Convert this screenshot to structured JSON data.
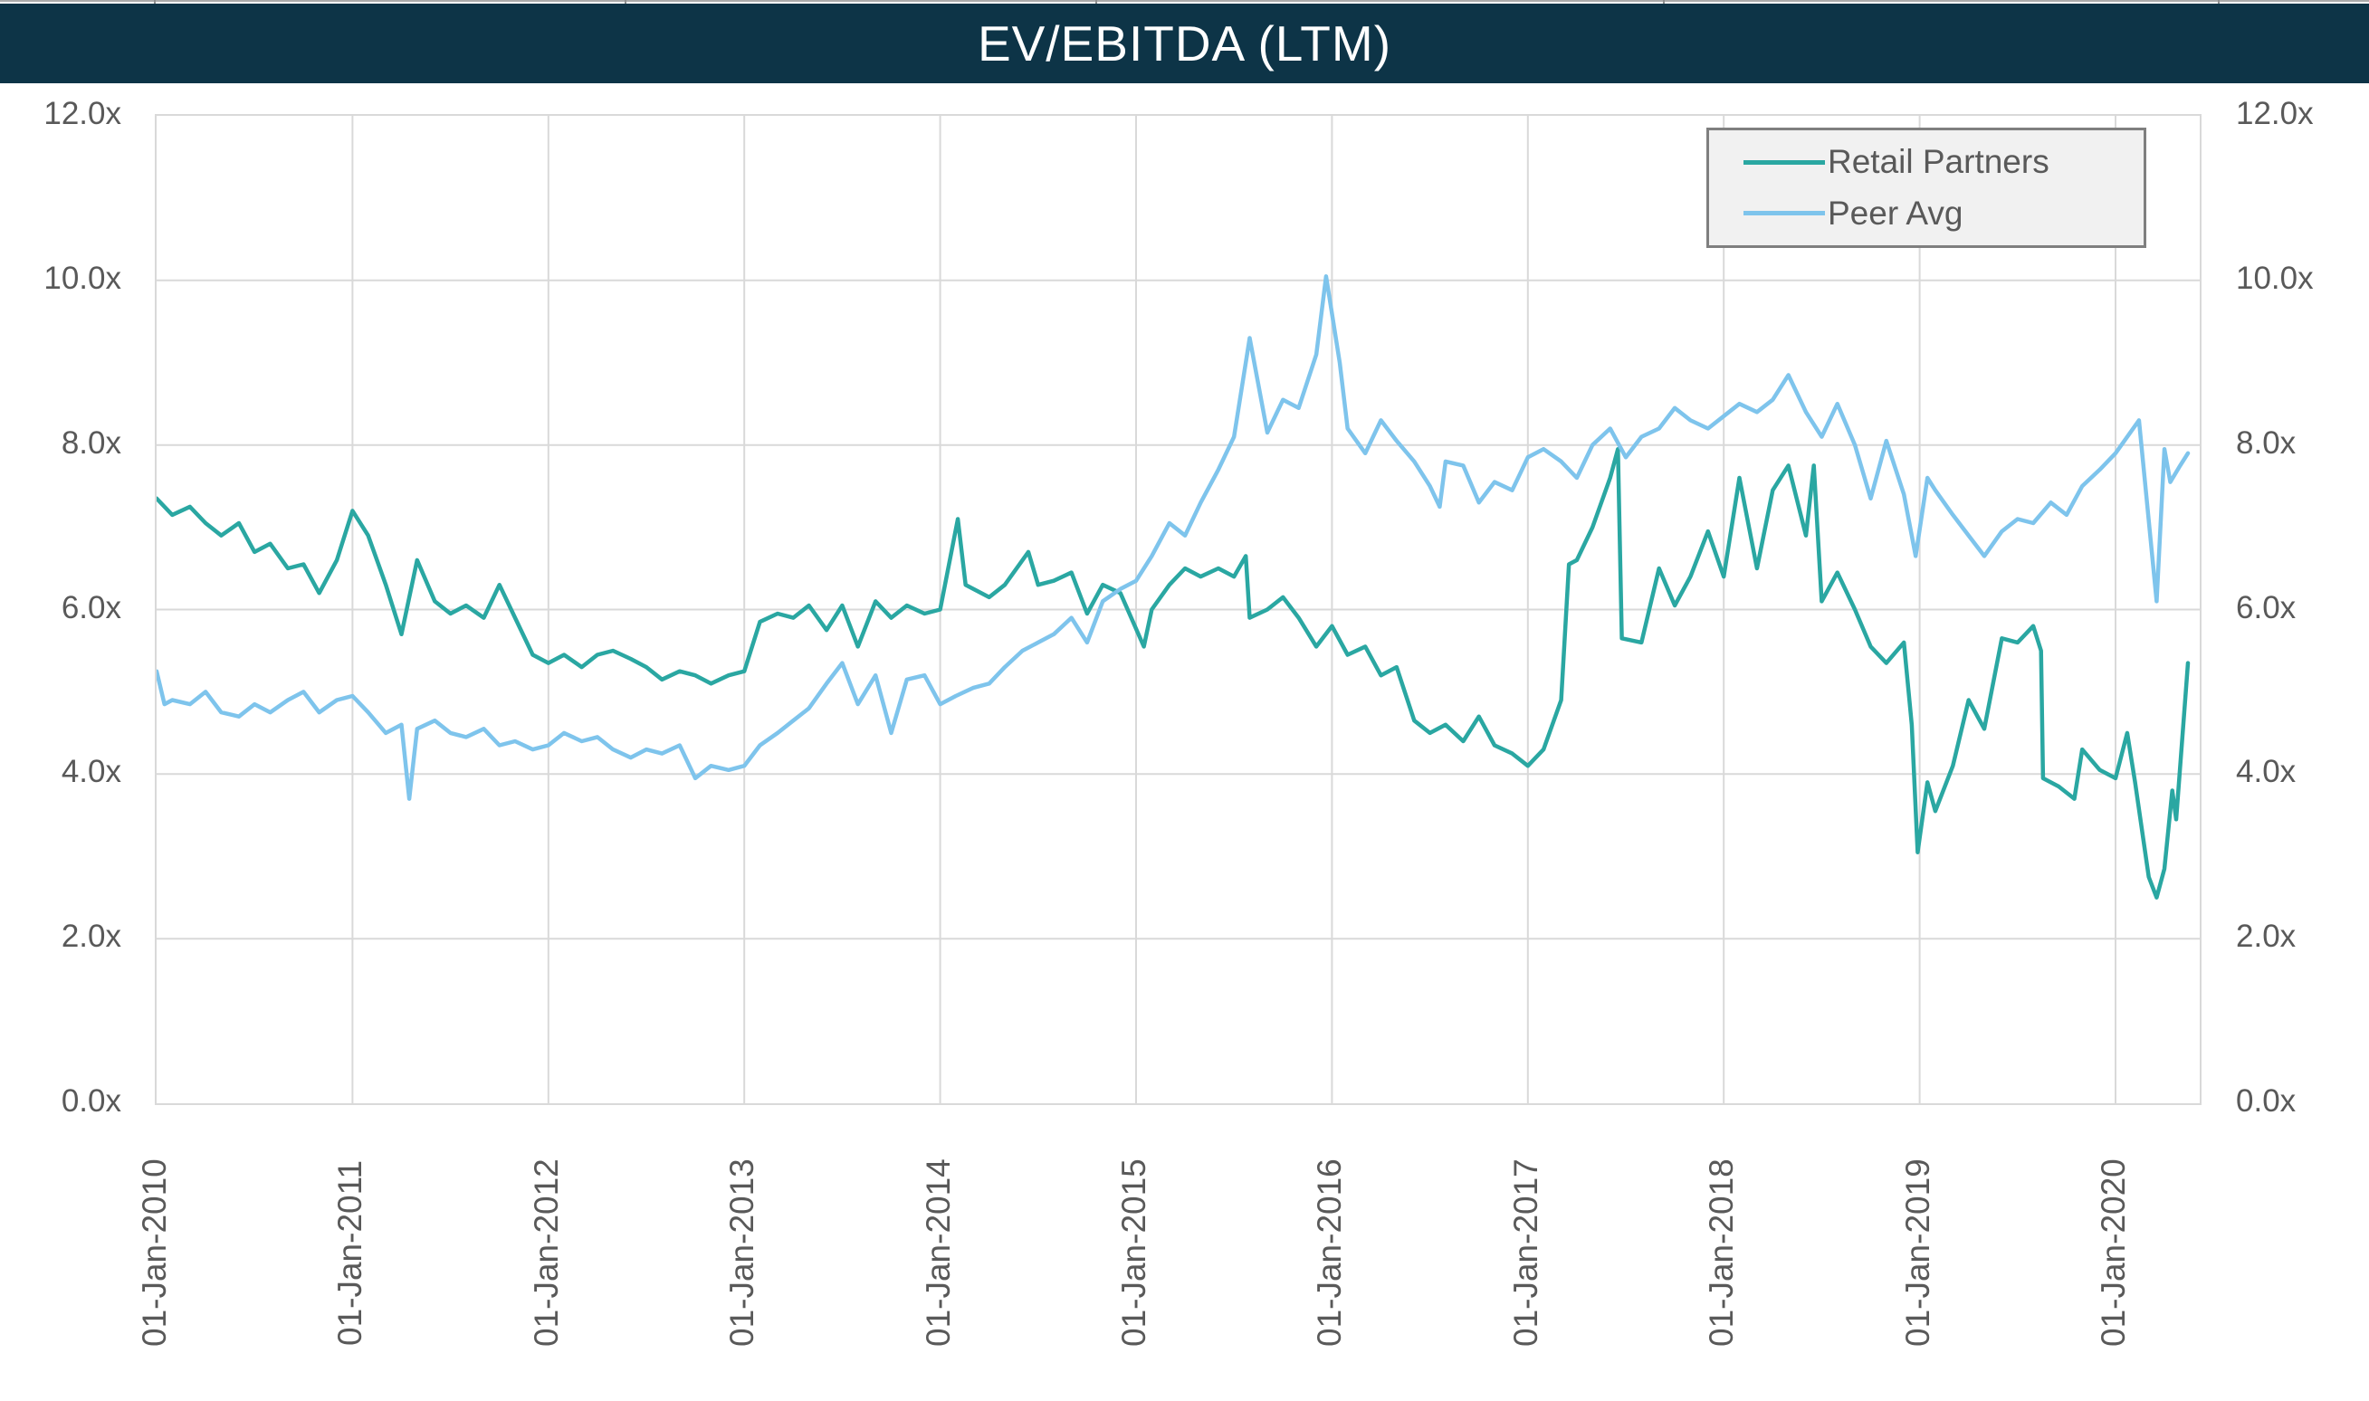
{
  "header": {
    "title": "EV/EBITDA (LTM)"
  },
  "colors": {
    "header_bg": "#0d3447",
    "title_text": "#ffffff",
    "axis_text": "#595959",
    "gridline": "#d9d9d9",
    "plot_border": "#d9d9d9",
    "legend_bg": "#f1f1f1",
    "legend_border": "#7f7f7f",
    "series_retail": "#2aa7a2",
    "series_peer": "#7ec4ec"
  },
  "chart_data": {
    "type": "line",
    "title": "EV/EBITDA (LTM)",
    "xlabel": "",
    "ylabel": "",
    "x_axis": {
      "unit": "date",
      "range_years_from_2010": [
        0,
        10.43
      ],
      "tick_positions_years": [
        0,
        1,
        2,
        3,
        4,
        5,
        6,
        7,
        8,
        9,
        10
      ],
      "tick_labels": [
        "01-Jan-2010",
        "01-Jan-2011",
        "01-Jan-2012",
        "01-Jan-2013",
        "01-Jan-2014",
        "01-Jan-2015",
        "01-Jan-2016",
        "01-Jan-2017",
        "01-Jan-2018",
        "01-Jan-2019",
        "01-Jan-2020"
      ],
      "gridlines": true,
      "label_rotation_deg": 90
    },
    "y_axis": {
      "range": [
        0,
        12
      ],
      "tick_values": [
        0,
        2,
        4,
        6,
        8,
        10,
        12
      ],
      "tick_labels": [
        "0.0x",
        "2.0x",
        "4.0x",
        "6.0x",
        "8.0x",
        "10.0x",
        "12.0x"
      ],
      "sides": "both",
      "gridlines": true
    },
    "legend": {
      "position": "top-right",
      "entries": [
        {
          "label": "Retail Partners",
          "color": "#2aa7a2"
        },
        {
          "label": "Peer Avg",
          "color": "#7ec4ec"
        }
      ]
    },
    "series": [
      {
        "name": "Retail Partners",
        "color": "#2aa7a2",
        "points_t_years_value_x": [
          [
            0.0,
            7.35
          ],
          [
            0.08,
            7.15
          ],
          [
            0.17,
            7.25
          ],
          [
            0.25,
            7.05
          ],
          [
            0.33,
            6.9
          ],
          [
            0.42,
            7.05
          ],
          [
            0.5,
            6.7
          ],
          [
            0.58,
            6.8
          ],
          [
            0.67,
            6.5
          ],
          [
            0.75,
            6.55
          ],
          [
            0.83,
            6.2
          ],
          [
            0.92,
            6.6
          ],
          [
            1.0,
            7.2
          ],
          [
            1.08,
            6.9
          ],
          [
            1.17,
            6.3
          ],
          [
            1.25,
            5.7
          ],
          [
            1.33,
            6.6
          ],
          [
            1.42,
            6.1
          ],
          [
            1.5,
            5.95
          ],
          [
            1.58,
            6.05
          ],
          [
            1.67,
            5.9
          ],
          [
            1.75,
            6.3
          ],
          [
            1.83,
            5.9
          ],
          [
            1.92,
            5.45
          ],
          [
            2.0,
            5.35
          ],
          [
            2.08,
            5.45
          ],
          [
            2.17,
            5.3
          ],
          [
            2.25,
            5.45
          ],
          [
            2.33,
            5.5
          ],
          [
            2.42,
            5.4
          ],
          [
            2.5,
            5.3
          ],
          [
            2.58,
            5.15
          ],
          [
            2.67,
            5.25
          ],
          [
            2.75,
            5.2
          ],
          [
            2.83,
            5.1
          ],
          [
            2.92,
            5.2
          ],
          [
            3.0,
            5.25
          ],
          [
            3.08,
            5.85
          ],
          [
            3.17,
            5.95
          ],
          [
            3.25,
            5.9
          ],
          [
            3.33,
            6.05
          ],
          [
            3.42,
            5.75
          ],
          [
            3.5,
            6.05
          ],
          [
            3.58,
            5.55
          ],
          [
            3.67,
            6.1
          ],
          [
            3.75,
            5.9
          ],
          [
            3.83,
            6.05
          ],
          [
            3.92,
            5.95
          ],
          [
            4.0,
            6.0
          ],
          [
            4.09,
            7.1
          ],
          [
            4.13,
            6.3
          ],
          [
            4.25,
            6.15
          ],
          [
            4.33,
            6.3
          ],
          [
            4.45,
            6.7
          ],
          [
            4.5,
            6.3
          ],
          [
            4.58,
            6.35
          ],
          [
            4.67,
            6.45
          ],
          [
            4.75,
            5.95
          ],
          [
            4.83,
            6.3
          ],
          [
            4.92,
            6.2
          ],
          [
            5.04,
            5.55
          ],
          [
            5.08,
            6.0
          ],
          [
            5.17,
            6.3
          ],
          [
            5.25,
            6.5
          ],
          [
            5.33,
            6.4
          ],
          [
            5.42,
            6.5
          ],
          [
            5.5,
            6.4
          ],
          [
            5.56,
            6.65
          ],
          [
            5.58,
            5.9
          ],
          [
            5.67,
            6.0
          ],
          [
            5.75,
            6.15
          ],
          [
            5.83,
            5.9
          ],
          [
            5.92,
            5.55
          ],
          [
            6.0,
            5.8
          ],
          [
            6.08,
            5.45
          ],
          [
            6.17,
            5.55
          ],
          [
            6.25,
            5.2
          ],
          [
            6.33,
            5.3
          ],
          [
            6.42,
            4.65
          ],
          [
            6.5,
            4.5
          ],
          [
            6.58,
            4.6
          ],
          [
            6.67,
            4.4
          ],
          [
            6.75,
            4.7
          ],
          [
            6.83,
            4.35
          ],
          [
            6.92,
            4.25
          ],
          [
            7.0,
            4.1
          ],
          [
            7.08,
            4.3
          ],
          [
            7.17,
            4.9
          ],
          [
            7.21,
            6.55
          ],
          [
            7.25,
            6.6
          ],
          [
            7.33,
            7.0
          ],
          [
            7.42,
            7.6
          ],
          [
            7.46,
            7.95
          ],
          [
            7.48,
            5.65
          ],
          [
            7.58,
            5.6
          ],
          [
            7.67,
            6.5
          ],
          [
            7.75,
            6.05
          ],
          [
            7.83,
            6.4
          ],
          [
            7.92,
            6.95
          ],
          [
            8.0,
            6.4
          ],
          [
            8.08,
            7.6
          ],
          [
            8.17,
            6.5
          ],
          [
            8.25,
            7.45
          ],
          [
            8.33,
            7.75
          ],
          [
            8.42,
            6.9
          ],
          [
            8.46,
            7.75
          ],
          [
            8.5,
            6.1
          ],
          [
            8.58,
            6.45
          ],
          [
            8.67,
            6.0
          ],
          [
            8.75,
            5.55
          ],
          [
            8.83,
            5.35
          ],
          [
            8.92,
            5.6
          ],
          [
            8.96,
            4.6
          ],
          [
            8.99,
            3.05
          ],
          [
            9.04,
            3.9
          ],
          [
            9.08,
            3.55
          ],
          [
            9.17,
            4.1
          ],
          [
            9.25,
            4.9
          ],
          [
            9.33,
            4.55
          ],
          [
            9.42,
            5.65
          ],
          [
            9.5,
            5.6
          ],
          [
            9.58,
            5.8
          ],
          [
            9.62,
            5.5
          ],
          [
            9.63,
            3.95
          ],
          [
            9.71,
            3.85
          ],
          [
            9.79,
            3.7
          ],
          [
            9.83,
            4.3
          ],
          [
            9.92,
            4.05
          ],
          [
            10.0,
            3.95
          ],
          [
            10.06,
            4.5
          ],
          [
            10.1,
            3.9
          ],
          [
            10.17,
            2.75
          ],
          [
            10.21,
            2.5
          ],
          [
            10.25,
            2.85
          ],
          [
            10.29,
            3.8
          ],
          [
            10.31,
            3.45
          ],
          [
            10.37,
            5.35
          ]
        ]
      },
      {
        "name": "Peer Avg",
        "color": "#7ec4ec",
        "points_t_years_value_x": [
          [
            0.0,
            5.25
          ],
          [
            0.04,
            4.85
          ],
          [
            0.08,
            4.9
          ],
          [
            0.17,
            4.85
          ],
          [
            0.25,
            5.0
          ],
          [
            0.33,
            4.75
          ],
          [
            0.42,
            4.7
          ],
          [
            0.5,
            4.85
          ],
          [
            0.58,
            4.75
          ],
          [
            0.67,
            4.9
          ],
          [
            0.75,
            5.0
          ],
          [
            0.83,
            4.75
          ],
          [
            0.92,
            4.9
          ],
          [
            1.0,
            4.95
          ],
          [
            1.08,
            4.75
          ],
          [
            1.17,
            4.5
          ],
          [
            1.25,
            4.6
          ],
          [
            1.29,
            3.7
          ],
          [
            1.33,
            4.55
          ],
          [
            1.42,
            4.65
          ],
          [
            1.5,
            4.5
          ],
          [
            1.58,
            4.45
          ],
          [
            1.67,
            4.55
          ],
          [
            1.75,
            4.35
          ],
          [
            1.83,
            4.4
          ],
          [
            1.92,
            4.3
          ],
          [
            2.0,
            4.35
          ],
          [
            2.08,
            4.5
          ],
          [
            2.17,
            4.4
          ],
          [
            2.25,
            4.45
          ],
          [
            2.33,
            4.3
          ],
          [
            2.42,
            4.2
          ],
          [
            2.5,
            4.3
          ],
          [
            2.58,
            4.25
          ],
          [
            2.67,
            4.35
          ],
          [
            2.75,
            3.95
          ],
          [
            2.83,
            4.1
          ],
          [
            2.92,
            4.05
          ],
          [
            3.0,
            4.1
          ],
          [
            3.08,
            4.35
          ],
          [
            3.17,
            4.5
          ],
          [
            3.25,
            4.65
          ],
          [
            3.33,
            4.8
          ],
          [
            3.42,
            5.1
          ],
          [
            3.5,
            5.35
          ],
          [
            3.58,
            4.85
          ],
          [
            3.67,
            5.2
          ],
          [
            3.75,
            4.5
          ],
          [
            3.83,
            5.15
          ],
          [
            3.92,
            5.2
          ],
          [
            4.0,
            4.85
          ],
          [
            4.08,
            4.95
          ],
          [
            4.17,
            5.05
          ],
          [
            4.25,
            5.1
          ],
          [
            4.33,
            5.3
          ],
          [
            4.42,
            5.5
          ],
          [
            4.5,
            5.6
          ],
          [
            4.58,
            5.7
          ],
          [
            4.67,
            5.9
          ],
          [
            4.75,
            5.6
          ],
          [
            4.83,
            6.1
          ],
          [
            4.92,
            6.25
          ],
          [
            5.0,
            6.35
          ],
          [
            5.08,
            6.65
          ],
          [
            5.17,
            7.05
          ],
          [
            5.25,
            6.9
          ],
          [
            5.33,
            7.3
          ],
          [
            5.42,
            7.7
          ],
          [
            5.5,
            8.1
          ],
          [
            5.58,
            9.3
          ],
          [
            5.67,
            8.15
          ],
          [
            5.75,
            8.55
          ],
          [
            5.83,
            8.45
          ],
          [
            5.92,
            9.1
          ],
          [
            5.97,
            10.05
          ],
          [
            6.04,
            9.0
          ],
          [
            6.08,
            8.2
          ],
          [
            6.17,
            7.9
          ],
          [
            6.25,
            8.3
          ],
          [
            6.33,
            8.05
          ],
          [
            6.42,
            7.8
          ],
          [
            6.5,
            7.5
          ],
          [
            6.55,
            7.25
          ],
          [
            6.58,
            7.8
          ],
          [
            6.67,
            7.75
          ],
          [
            6.75,
            7.3
          ],
          [
            6.83,
            7.55
          ],
          [
            6.92,
            7.45
          ],
          [
            7.0,
            7.85
          ],
          [
            7.08,
            7.95
          ],
          [
            7.17,
            7.8
          ],
          [
            7.25,
            7.6
          ],
          [
            7.33,
            8.0
          ],
          [
            7.42,
            8.2
          ],
          [
            7.5,
            7.85
          ],
          [
            7.58,
            8.1
          ],
          [
            7.67,
            8.2
          ],
          [
            7.75,
            8.45
          ],
          [
            7.83,
            8.3
          ],
          [
            7.92,
            8.2
          ],
          [
            8.0,
            8.35
          ],
          [
            8.08,
            8.5
          ],
          [
            8.17,
            8.4
          ],
          [
            8.25,
            8.55
          ],
          [
            8.33,
            8.85
          ],
          [
            8.42,
            8.4
          ],
          [
            8.5,
            8.1
          ],
          [
            8.58,
            8.5
          ],
          [
            8.67,
            8.0
          ],
          [
            8.75,
            7.35
          ],
          [
            8.83,
            8.05
          ],
          [
            8.92,
            7.4
          ],
          [
            8.98,
            6.65
          ],
          [
            9.04,
            7.6
          ],
          [
            9.08,
            7.45
          ],
          [
            9.17,
            7.15
          ],
          [
            9.25,
            6.9
          ],
          [
            9.33,
            6.65
          ],
          [
            9.42,
            6.95
          ],
          [
            9.5,
            7.1
          ],
          [
            9.58,
            7.05
          ],
          [
            9.67,
            7.3
          ],
          [
            9.75,
            7.15
          ],
          [
            9.83,
            7.5
          ],
          [
            9.92,
            7.7
          ],
          [
            10.0,
            7.9
          ],
          [
            10.12,
            8.3
          ],
          [
            10.21,
            6.1
          ],
          [
            10.25,
            7.95
          ],
          [
            10.28,
            7.55
          ],
          [
            10.33,
            7.75
          ],
          [
            10.37,
            7.9
          ]
        ]
      }
    ]
  }
}
